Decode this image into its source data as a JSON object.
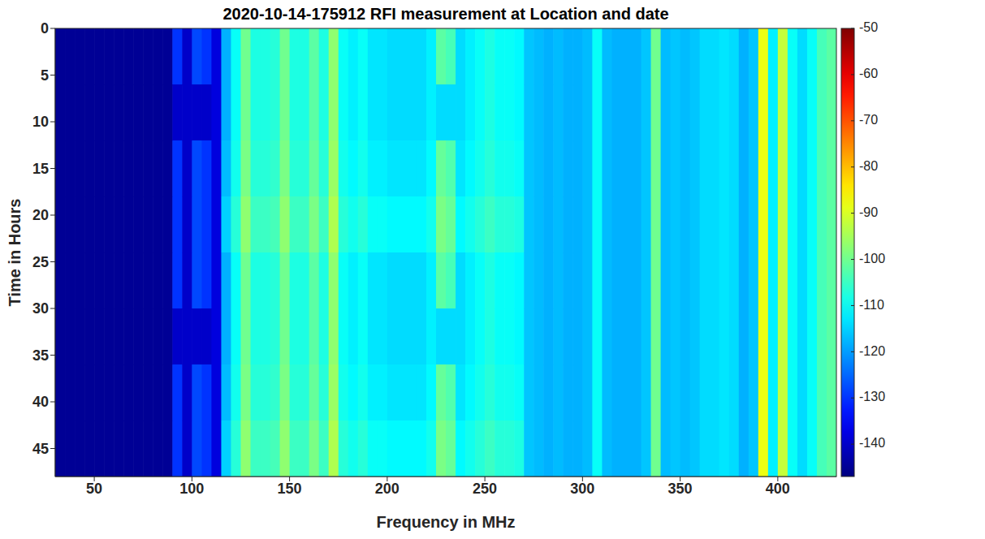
{
  "chart_data": {
    "type": "heatmap",
    "title": "2020-10-14-175912 RFI measurement at Location and date",
    "x_label": "Frequency in MHz",
    "y_label": "Time in Hours",
    "x": [
      32.5,
      37.5,
      42.5,
      47.5,
      52.5,
      57.5,
      62.5,
      67.5,
      72.5,
      77.5,
      82.5,
      87.5,
      92.5,
      97.5,
      102.5,
      107.5,
      112.5,
      117.5,
      122.5,
      127.5,
      132.5,
      137.5,
      142.5,
      147.5,
      152.5,
      157.5,
      162.5,
      167.5,
      172.5,
      177.5,
      182.5,
      187.5,
      192.5,
      197.5,
      202.5,
      207.5,
      212.5,
      217.5,
      222.5,
      227.5,
      232.5,
      237.5,
      242.5,
      247.5,
      252.5,
      257.5,
      262.5,
      267.5,
      272.5,
      277.5,
      282.5,
      287.5,
      292.5,
      297.5,
      302.5,
      307.5,
      312.5,
      317.5,
      322.5,
      327.5,
      332.5,
      337.5,
      342.5,
      347.5,
      352.5,
      357.5,
      362.5,
      367.5,
      372.5,
      377.5,
      382.5,
      387.5,
      392.5,
      397.5,
      402.5,
      407.5,
      412.5,
      417.5,
      422.5,
      427.5
    ],
    "y": [
      3,
      9,
      15,
      21,
      27,
      33,
      39,
      45
    ],
    "cells": [
      [
        -145,
        -145,
        -145,
        -145,
        -145,
        -145,
        -145,
        -145,
        -145,
        -145,
        -145,
        -145,
        -130,
        -140,
        -128,
        -130,
        -138,
        -118,
        -110,
        -100,
        -108,
        -108,
        -107,
        -100,
        -108,
        -108,
        -102,
        -108,
        -97,
        -110,
        -112,
        -110,
        -113,
        -113,
        -114,
        -114,
        -114,
        -114,
        -112,
        -102,
        -104,
        -114,
        -112,
        -110,
        -108,
        -110,
        -110,
        -111,
        -116,
        -117,
        -118,
        -117,
        -118,
        -118,
        -117,
        -110,
        -117,
        -118,
        -118,
        -118,
        -116,
        -100,
        -117,
        -116,
        -117,
        -116,
        -114,
        -114,
        -113,
        -114,
        -118,
        -116,
        -88,
        -112,
        -92,
        -110,
        -114,
        -110,
        -104,
        -102
      ],
      [
        -145,
        -145,
        -145,
        -145,
        -145,
        -145,
        -145,
        -145,
        -145,
        -145,
        -145,
        -145,
        -140,
        -140,
        -140,
        -140,
        -138,
        -118,
        -110,
        -100,
        -108,
        -108,
        -107,
        -100,
        -108,
        -108,
        -102,
        -108,
        -97,
        -110,
        -112,
        -110,
        -113,
        -113,
        -114,
        -114,
        -114,
        -114,
        -112,
        -114,
        -114,
        -114,
        -112,
        -110,
        -108,
        -110,
        -110,
        -111,
        -116,
        -117,
        -118,
        -117,
        -118,
        -118,
        -117,
        -110,
        -117,
        -118,
        -118,
        -118,
        -116,
        -100,
        -117,
        -116,
        -117,
        -116,
        -114,
        -114,
        -113,
        -114,
        -118,
        -116,
        -88,
        -112,
        -92,
        -110,
        -114,
        -110,
        -104,
        -102
      ],
      [
        -145,
        -145,
        -145,
        -145,
        -145,
        -145,
        -145,
        -145,
        -145,
        -145,
        -145,
        -145,
        -130,
        -140,
        -128,
        -130,
        -138,
        -117,
        -109,
        -99,
        -107,
        -107,
        -106,
        -99,
        -107,
        -107,
        -101,
        -107,
        -96,
        -109,
        -111,
        -109,
        -112,
        -112,
        -113,
        -113,
        -113,
        -113,
        -111,
        -101,
        -103,
        -113,
        -111,
        -109,
        -107,
        -109,
        -109,
        -110,
        -116,
        -117,
        -118,
        -117,
        -118,
        -118,
        -117,
        -110,
        -117,
        -118,
        -118,
        -118,
        -116,
        -100,
        -117,
        -116,
        -117,
        -116,
        -114,
        -114,
        -113,
        -114,
        -118,
        -116,
        -88,
        -112,
        -92,
        -110,
        -114,
        -110,
        -104,
        -102
      ],
      [
        -145,
        -145,
        -145,
        -145,
        -145,
        -145,
        -145,
        -145,
        -145,
        -145,
        -145,
        -145,
        -130,
        -140,
        -128,
        -130,
        -138,
        -115,
        -107,
        -97,
        -105,
        -105,
        -104,
        -97,
        -105,
        -105,
        -99,
        -105,
        -94,
        -107,
        -109,
        -107,
        -110,
        -110,
        -111,
        -111,
        -111,
        -111,
        -109,
        -99,
        -101,
        -111,
        -109,
        -107,
        -105,
        -107,
        -107,
        -108,
        -116,
        -117,
        -118,
        -117,
        -118,
        -118,
        -117,
        -110,
        -117,
        -118,
        -118,
        -118,
        -116,
        -100,
        -117,
        -116,
        -117,
        -116,
        -114,
        -114,
        -113,
        -114,
        -118,
        -116,
        -88,
        -112,
        -92,
        -110,
        -114,
        -110,
        -104,
        -102
      ],
      [
        -145,
        -145,
        -145,
        -145,
        -145,
        -145,
        -145,
        -145,
        -145,
        -145,
        -145,
        -145,
        -130,
        -140,
        -128,
        -130,
        -138,
        -118,
        -110,
        -100,
        -108,
        -108,
        -107,
        -100,
        -108,
        -108,
        -102,
        -108,
        -97,
        -110,
        -112,
        -110,
        -113,
        -113,
        -114,
        -114,
        -114,
        -114,
        -112,
        -102,
        -104,
        -114,
        -112,
        -110,
        -108,
        -110,
        -110,
        -111,
        -116,
        -117,
        -118,
        -117,
        -118,
        -118,
        -117,
        -110,
        -117,
        -118,
        -118,
        -118,
        -116,
        -100,
        -117,
        -116,
        -117,
        -116,
        -114,
        -114,
        -113,
        -114,
        -118,
        -116,
        -88,
        -112,
        -92,
        -110,
        -114,
        -110,
        -104,
        -102
      ],
      [
        -145,
        -145,
        -145,
        -145,
        -145,
        -145,
        -145,
        -145,
        -145,
        -145,
        -145,
        -145,
        -140,
        -140,
        -140,
        -140,
        -138,
        -118,
        -110,
        -100,
        -108,
        -108,
        -107,
        -100,
        -108,
        -108,
        -102,
        -108,
        -97,
        -110,
        -112,
        -110,
        -113,
        -113,
        -114,
        -114,
        -114,
        -114,
        -112,
        -114,
        -114,
        -114,
        -112,
        -110,
        -108,
        -110,
        -110,
        -111,
        -116,
        -117,
        -118,
        -117,
        -118,
        -118,
        -117,
        -110,
        -117,
        -118,
        -118,
        -118,
        -116,
        -100,
        -117,
        -116,
        -117,
        -116,
        -114,
        -114,
        -113,
        -114,
        -118,
        -116,
        -88,
        -112,
        -92,
        -110,
        -114,
        -110,
        -104,
        -102
      ],
      [
        -145,
        -145,
        -145,
        -145,
        -145,
        -145,
        -145,
        -145,
        -145,
        -145,
        -145,
        -145,
        -130,
        -140,
        -128,
        -130,
        -138,
        -117,
        -109,
        -99,
        -107,
        -107,
        -106,
        -99,
        -107,
        -107,
        -101,
        -107,
        -96,
        -109,
        -111,
        -109,
        -112,
        -112,
        -113,
        -113,
        -113,
        -113,
        -111,
        -101,
        -103,
        -113,
        -111,
        -109,
        -107,
        -109,
        -109,
        -110,
        -116,
        -117,
        -118,
        -117,
        -118,
        -118,
        -117,
        -110,
        -117,
        -118,
        -118,
        -118,
        -116,
        -100,
        -117,
        -116,
        -117,
        -116,
        -114,
        -114,
        -113,
        -114,
        -118,
        -116,
        -88,
        -112,
        -92,
        -110,
        -114,
        -110,
        -104,
        -102
      ],
      [
        -145,
        -145,
        -145,
        -145,
        -145,
        -145,
        -145,
        -145,
        -145,
        -145,
        -145,
        -145,
        -130,
        -140,
        -128,
        -130,
        -138,
        -115,
        -107,
        -97,
        -105,
        -105,
        -104,
        -97,
        -105,
        -105,
        -99,
        -105,
        -94,
        -107,
        -109,
        -107,
        -110,
        -110,
        -111,
        -111,
        -111,
        -111,
        -109,
        -99,
        -101,
        -111,
        -109,
        -107,
        -105,
        -107,
        -107,
        -108,
        -116,
        -117,
        -118,
        -117,
        -118,
        -118,
        -117,
        -110,
        -117,
        -118,
        -118,
        -118,
        -116,
        -100,
        -117,
        -116,
        -117,
        -116,
        -114,
        -114,
        -113,
        -114,
        -118,
        -116,
        -88,
        -112,
        -92,
        -110,
        -114,
        -110,
        -104,
        -102
      ]
    ],
    "xlim": [
      30,
      430
    ],
    "xticks": [
      50,
      100,
      150,
      200,
      250,
      300,
      350,
      400
    ],
    "ylim": [
      0,
      48
    ],
    "yticks": [
      0,
      5,
      10,
      15,
      20,
      25,
      30,
      35,
      40,
      45
    ],
    "colorbar": {
      "range": [
        -147,
        -50
      ],
      "ticks": [
        -50,
        -60,
        -70,
        -80,
        -90,
        -100,
        -110,
        -120,
        -130,
        -140
      ]
    }
  }
}
